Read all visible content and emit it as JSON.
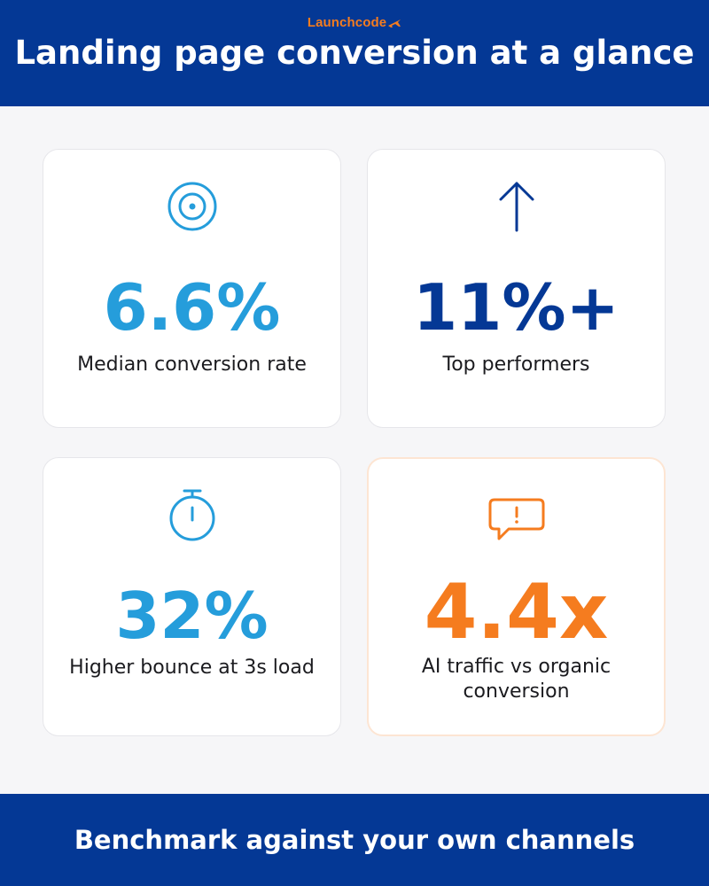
{
  "brand": {
    "name": "Launchcode",
    "logo_icon": "plane-icon",
    "color": "#f57c1f"
  },
  "header": {
    "title": "Landing page conversion at a glance",
    "background": "#043895"
  },
  "cards": [
    {
      "icon": "target-icon",
      "value": "6.6%",
      "label": "Median conversion rate",
      "color": "#259ddb"
    },
    {
      "icon": "arrow-up-icon",
      "value": "11%+",
      "label": "Top performers",
      "color": "#043895"
    },
    {
      "icon": "stopwatch-icon",
      "value": "32%",
      "label": "Higher bounce at 3s load",
      "color": "#259ddb"
    },
    {
      "icon": "chat-alert-icon",
      "value": "4.4x",
      "label_line1": "AI traffic vs organic",
      "label_line2": "conversion",
      "color": "#f57c1f"
    }
  ],
  "footer": {
    "text": "Benchmark against your own channels",
    "background": "#043895"
  }
}
